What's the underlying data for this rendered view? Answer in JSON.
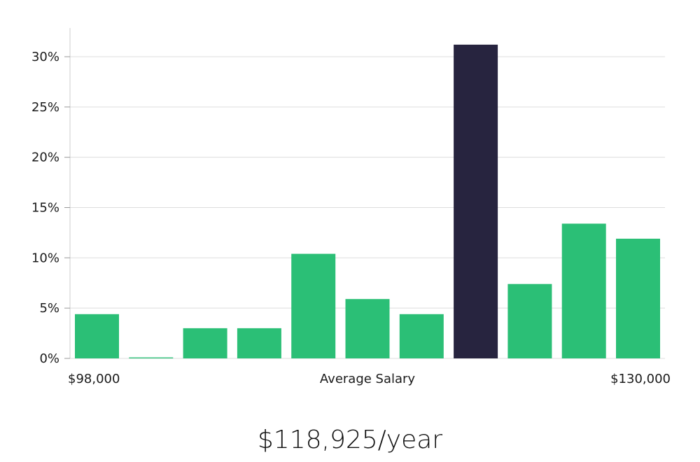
{
  "chart_data": {
    "type": "bar",
    "title": "",
    "xlabel": "Average Salary",
    "ylabel": "",
    "ylim": [
      0,
      33
    ],
    "yticks": [
      0,
      5,
      10,
      15,
      20,
      25,
      30
    ],
    "ytick_labels": [
      "0%",
      "5%",
      "10%",
      "15%",
      "20%",
      "25%",
      "30%"
    ],
    "x_range_labels": {
      "min": "$98,000",
      "max": "$130,000"
    },
    "bins": 11,
    "values": [
      4.4,
      0.1,
      3.0,
      3.0,
      10.4,
      5.9,
      4.4,
      31.2,
      7.4,
      13.4,
      11.9
    ],
    "highlight_index": 7,
    "colors": {
      "bar": "#2bbf76",
      "highlight": "#27243f",
      "grid": "#dddddd",
      "axis": "#cccccc"
    },
    "grid": true
  },
  "summary": {
    "salary_text": "$118,925/year"
  }
}
